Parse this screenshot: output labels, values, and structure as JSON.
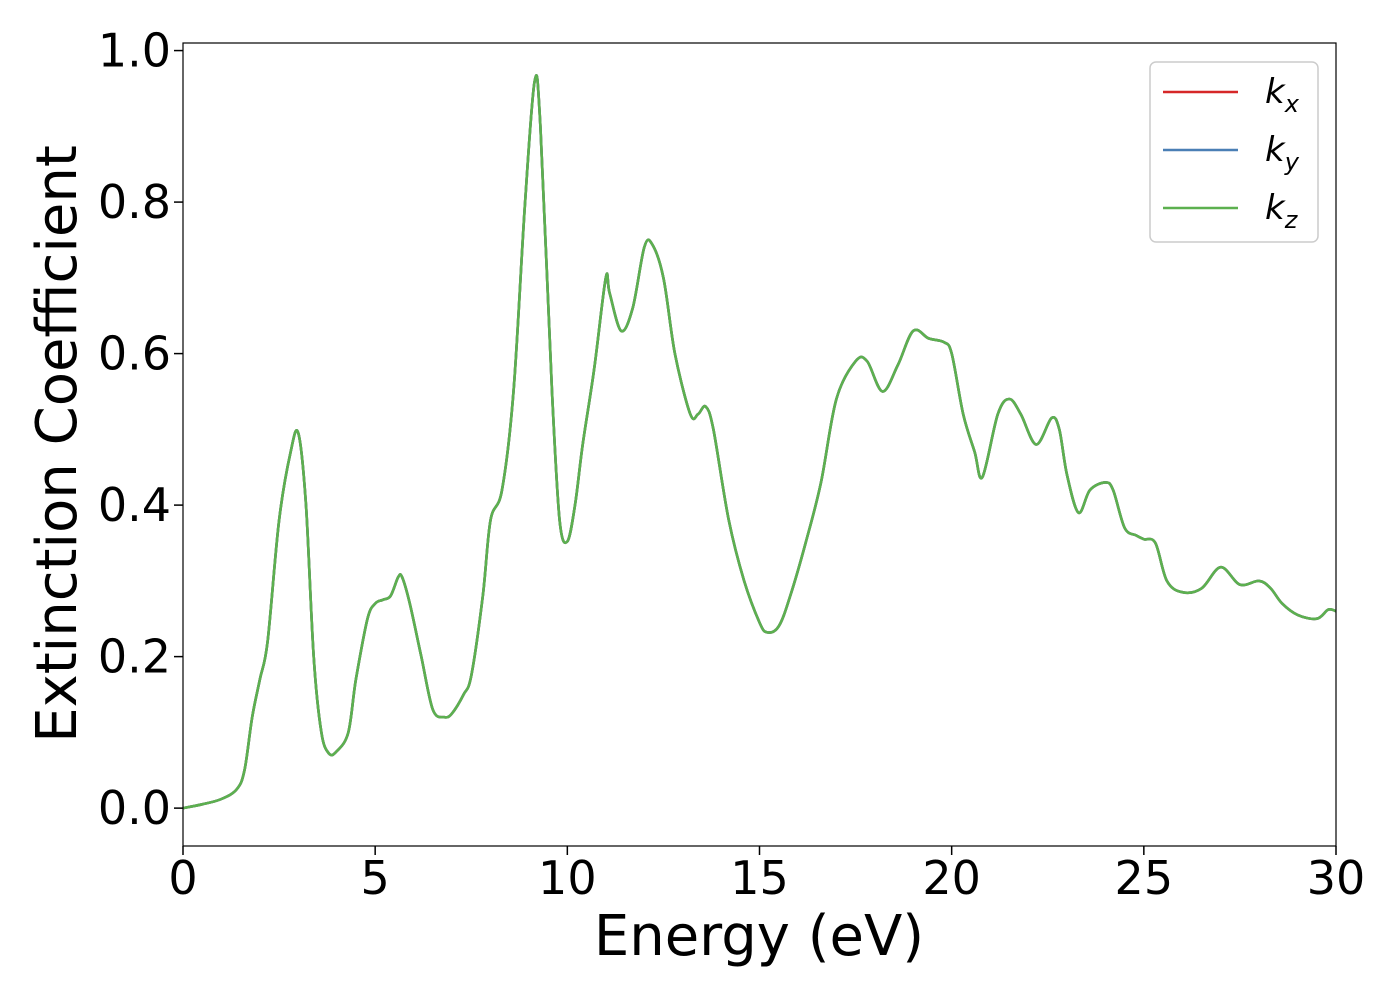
{
  "chart_data": {
    "type": "line",
    "title": "",
    "xlabel": "Energy (eV)",
    "ylabel": "Extinction Coefficient",
    "xlim": [
      0,
      30
    ],
    "ylim": [
      -0.05,
      1.01
    ],
    "xticks": [
      0,
      5,
      10,
      15,
      20,
      25,
      30
    ],
    "yticks": [
      0.0,
      0.2,
      0.4,
      0.6,
      0.8,
      1.0
    ],
    "xtick_labels": [
      "0",
      "5",
      "10",
      "15",
      "20",
      "25",
      "30"
    ],
    "ytick_labels": [
      "0.0",
      "0.2",
      "0.4",
      "0.6",
      "0.8",
      "1.0"
    ],
    "grid": false,
    "legend_position": "top-right",
    "series": [
      {
        "name": "k",
        "subscript": "x",
        "color": "#d62728",
        "x": [
          0,
          0.5,
          1.0,
          1.4,
          1.6,
          1.8,
          2.0,
          2.2,
          2.5,
          2.8,
          3.0,
          3.2,
          3.4,
          3.6,
          3.8,
          4.0,
          4.3,
          4.5,
          4.8,
          5.0,
          5.2,
          5.4,
          5.6,
          5.7,
          5.9,
          6.2,
          6.5,
          6.8,
          7.0,
          7.3,
          7.5,
          7.8,
          8.0,
          8.3,
          8.6,
          8.9,
          9.15,
          9.3,
          9.6,
          9.8,
          10.0,
          10.2,
          10.4,
          10.7,
          11.0,
          11.1,
          11.4,
          11.7,
          12.0,
          12.2,
          12.5,
          12.8,
          13.2,
          13.4,
          13.6,
          13.8,
          14.2,
          14.6,
          15.0,
          15.2,
          15.5,
          15.8,
          16.2,
          16.6,
          17.0,
          17.5,
          17.8,
          18.2,
          18.6,
          19.0,
          19.4,
          19.8,
          20.0,
          20.3,
          20.6,
          20.8,
          21.2,
          21.5,
          21.8,
          22.2,
          22.6,
          22.8,
          23.0,
          23.3,
          23.6,
          24.0,
          24.2,
          24.5,
          24.8,
          25.0,
          25.3,
          25.6,
          26.0,
          26.5,
          27.0,
          27.5,
          28.0,
          28.3,
          28.6,
          29.0,
          29.5,
          29.8,
          30.0
        ],
        "values": [
          0,
          0.005,
          0.012,
          0.025,
          0.05,
          0.12,
          0.17,
          0.22,
          0.38,
          0.47,
          0.495,
          0.4,
          0.2,
          0.1,
          0.072,
          0.075,
          0.1,
          0.17,
          0.25,
          0.27,
          0.275,
          0.28,
          0.305,
          0.305,
          0.27,
          0.2,
          0.13,
          0.12,
          0.125,
          0.15,
          0.175,
          0.28,
          0.38,
          0.42,
          0.55,
          0.8,
          0.96,
          0.9,
          0.55,
          0.38,
          0.352,
          0.4,
          0.48,
          0.58,
          0.7,
          0.68,
          0.63,
          0.66,
          0.74,
          0.745,
          0.7,
          0.6,
          0.52,
          0.52,
          0.53,
          0.5,
          0.38,
          0.3,
          0.245,
          0.232,
          0.24,
          0.28,
          0.35,
          0.43,
          0.54,
          0.59,
          0.59,
          0.55,
          0.585,
          0.63,
          0.62,
          0.615,
          0.6,
          0.52,
          0.47,
          0.437,
          0.52,
          0.54,
          0.52,
          0.48,
          0.515,
          0.5,
          0.44,
          0.39,
          0.42,
          0.43,
          0.42,
          0.37,
          0.36,
          0.355,
          0.35,
          0.3,
          0.285,
          0.29,
          0.318,
          0.295,
          0.3,
          0.29,
          0.27,
          0.255,
          0.25,
          0.262,
          0.26
        ]
      },
      {
        "name": "k",
        "subscript": "y",
        "color": "#4a7fb5",
        "x": [
          0,
          0.5,
          1.0,
          1.4,
          1.6,
          1.8,
          2.0,
          2.2,
          2.5,
          2.8,
          3.0,
          3.2,
          3.4,
          3.6,
          3.8,
          4.0,
          4.3,
          4.5,
          4.8,
          5.0,
          5.2,
          5.4,
          5.6,
          5.7,
          5.9,
          6.2,
          6.5,
          6.8,
          7.0,
          7.3,
          7.5,
          7.8,
          8.0,
          8.3,
          8.6,
          8.9,
          9.15,
          9.3,
          9.6,
          9.8,
          10.0,
          10.2,
          10.4,
          10.7,
          11.0,
          11.1,
          11.4,
          11.7,
          12.0,
          12.2,
          12.5,
          12.8,
          13.2,
          13.4,
          13.6,
          13.8,
          14.2,
          14.6,
          15.0,
          15.2,
          15.5,
          15.8,
          16.2,
          16.6,
          17.0,
          17.5,
          17.8,
          18.2,
          18.6,
          19.0,
          19.4,
          19.8,
          20.0,
          20.3,
          20.6,
          20.8,
          21.2,
          21.5,
          21.8,
          22.2,
          22.6,
          22.8,
          23.0,
          23.3,
          23.6,
          24.0,
          24.2,
          24.5,
          24.8,
          25.0,
          25.3,
          25.6,
          26.0,
          26.5,
          27.0,
          27.5,
          28.0,
          28.3,
          28.6,
          29.0,
          29.5,
          29.8,
          30.0
        ],
        "values": [
          0,
          0.005,
          0.012,
          0.025,
          0.05,
          0.12,
          0.17,
          0.22,
          0.38,
          0.47,
          0.495,
          0.4,
          0.2,
          0.1,
          0.072,
          0.075,
          0.1,
          0.17,
          0.25,
          0.27,
          0.275,
          0.28,
          0.305,
          0.305,
          0.27,
          0.2,
          0.13,
          0.12,
          0.125,
          0.15,
          0.175,
          0.28,
          0.38,
          0.42,
          0.55,
          0.8,
          0.96,
          0.9,
          0.55,
          0.38,
          0.352,
          0.4,
          0.48,
          0.58,
          0.7,
          0.68,
          0.63,
          0.66,
          0.74,
          0.745,
          0.7,
          0.6,
          0.52,
          0.52,
          0.53,
          0.5,
          0.38,
          0.3,
          0.245,
          0.232,
          0.24,
          0.28,
          0.35,
          0.43,
          0.54,
          0.59,
          0.59,
          0.55,
          0.585,
          0.63,
          0.62,
          0.615,
          0.6,
          0.52,
          0.47,
          0.437,
          0.52,
          0.54,
          0.52,
          0.48,
          0.515,
          0.5,
          0.44,
          0.39,
          0.42,
          0.43,
          0.42,
          0.37,
          0.36,
          0.355,
          0.35,
          0.3,
          0.285,
          0.29,
          0.318,
          0.295,
          0.3,
          0.29,
          0.27,
          0.255,
          0.25,
          0.262,
          0.26
        ]
      },
      {
        "name": "k",
        "subscript": "z",
        "color": "#5cb04f",
        "x": [
          0,
          0.5,
          1.0,
          1.4,
          1.6,
          1.8,
          2.0,
          2.2,
          2.5,
          2.8,
          3.0,
          3.2,
          3.4,
          3.6,
          3.8,
          4.0,
          4.3,
          4.5,
          4.8,
          5.0,
          5.2,
          5.4,
          5.6,
          5.7,
          5.9,
          6.2,
          6.5,
          6.8,
          7.0,
          7.3,
          7.5,
          7.8,
          8.0,
          8.3,
          8.6,
          8.9,
          9.15,
          9.3,
          9.6,
          9.8,
          10.0,
          10.2,
          10.4,
          10.7,
          11.0,
          11.1,
          11.4,
          11.7,
          12.0,
          12.2,
          12.5,
          12.8,
          13.2,
          13.4,
          13.6,
          13.8,
          14.2,
          14.6,
          15.0,
          15.2,
          15.5,
          15.8,
          16.2,
          16.6,
          17.0,
          17.5,
          17.8,
          18.2,
          18.6,
          19.0,
          19.4,
          19.8,
          20.0,
          20.3,
          20.6,
          20.8,
          21.2,
          21.5,
          21.8,
          22.2,
          22.6,
          22.8,
          23.0,
          23.3,
          23.6,
          24.0,
          24.2,
          24.5,
          24.8,
          25.0,
          25.3,
          25.6,
          26.0,
          26.5,
          27.0,
          27.5,
          28.0,
          28.3,
          28.6,
          29.0,
          29.5,
          29.8,
          30.0
        ],
        "values": [
          0,
          0.005,
          0.012,
          0.025,
          0.05,
          0.12,
          0.17,
          0.22,
          0.38,
          0.47,
          0.495,
          0.4,
          0.2,
          0.1,
          0.072,
          0.075,
          0.1,
          0.17,
          0.25,
          0.27,
          0.275,
          0.28,
          0.305,
          0.305,
          0.27,
          0.2,
          0.13,
          0.12,
          0.125,
          0.15,
          0.175,
          0.28,
          0.38,
          0.42,
          0.55,
          0.8,
          0.96,
          0.9,
          0.55,
          0.38,
          0.352,
          0.4,
          0.48,
          0.58,
          0.7,
          0.68,
          0.63,
          0.66,
          0.74,
          0.745,
          0.7,
          0.6,
          0.52,
          0.52,
          0.53,
          0.5,
          0.38,
          0.3,
          0.245,
          0.232,
          0.24,
          0.28,
          0.35,
          0.43,
          0.54,
          0.59,
          0.59,
          0.55,
          0.585,
          0.63,
          0.62,
          0.615,
          0.6,
          0.52,
          0.47,
          0.437,
          0.52,
          0.54,
          0.52,
          0.48,
          0.515,
          0.5,
          0.44,
          0.39,
          0.42,
          0.43,
          0.42,
          0.37,
          0.36,
          0.355,
          0.35,
          0.3,
          0.285,
          0.29,
          0.318,
          0.295,
          0.3,
          0.29,
          0.27,
          0.255,
          0.25,
          0.262,
          0.26
        ]
      }
    ]
  }
}
